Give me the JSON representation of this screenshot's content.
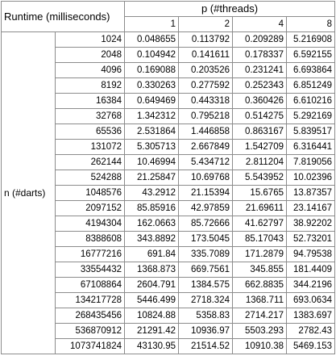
{
  "table": {
    "title": "Runtime (milliseconds)",
    "p_label": "p (#threads)",
    "n_label": "n (#darts)",
    "threads": [
      "1",
      "2",
      "4",
      "8"
    ],
    "rows": [
      {
        "n": "1024",
        "v": [
          "0.048655",
          "0.113792",
          "0.209289",
          "5.216908"
        ]
      },
      {
        "n": "2048",
        "v": [
          "0.104942",
          "0.141611",
          "0.178337",
          "6.592155"
        ]
      },
      {
        "n": "4096",
        "v": [
          "0.169088",
          "0.203526",
          "0.231241",
          "6.693864"
        ]
      },
      {
        "n": "8192",
        "v": [
          "0.330263",
          "0.277592",
          "0.252343",
          "6.851249"
        ]
      },
      {
        "n": "16384",
        "v": [
          "0.649469",
          "0.443318",
          "0.360426",
          "6.610216"
        ]
      },
      {
        "n": "32768",
        "v": [
          "1.342312",
          "0.795218",
          "0.514275",
          "5.292169"
        ]
      },
      {
        "n": "65536",
        "v": [
          "2.531864",
          "1.446858",
          "0.863167",
          "5.839517"
        ]
      },
      {
        "n": "131072",
        "v": [
          "5.305713",
          "2.667849",
          "1.542709",
          "6.316441"
        ]
      },
      {
        "n": "262144",
        "v": [
          "10.46994",
          "5.434712",
          "2.811204",
          "7.819056"
        ]
      },
      {
        "n": "524288",
        "v": [
          "21.25847",
          "10.69768",
          "5.543952",
          "10.02396"
        ]
      },
      {
        "n": "1048576",
        "v": [
          "43.2912",
          "21.15394",
          "15.6765",
          "13.87357"
        ]
      },
      {
        "n": "2097152",
        "v": [
          "85.85916",
          "42.97859",
          "21.69611",
          "23.14167"
        ]
      },
      {
        "n": "4194304",
        "v": [
          "162.0663",
          "85.72666",
          "41.62797",
          "38.92202"
        ]
      },
      {
        "n": "8388608",
        "v": [
          "343.8892",
          "173.5045",
          "85.17043",
          "52.73201"
        ]
      },
      {
        "n": "16777216",
        "v": [
          "691.84",
          "335.7089",
          "171.2879",
          "94.79538"
        ]
      },
      {
        "n": "33554432",
        "v": [
          "1368.873",
          "669.7561",
          "345.855",
          "181.4409"
        ]
      },
      {
        "n": "67108864",
        "v": [
          "2604.791",
          "1384.575",
          "662.8835",
          "344.2196"
        ]
      },
      {
        "n": "134217728",
        "v": [
          "5446.499",
          "2718.324",
          "1368.711",
          "693.0634"
        ]
      },
      {
        "n": "268435456",
        "v": [
          "10824.88",
          "5358.83",
          "2714.217",
          "1383.697"
        ]
      },
      {
        "n": "536870912",
        "v": [
          "21291.42",
          "10936.97",
          "5503.293",
          "2782.43"
        ]
      },
      {
        "n": "1073741824",
        "v": [
          "43130.95",
          "21514.52",
          "10910.38",
          "5469.153"
        ]
      }
    ]
  }
}
